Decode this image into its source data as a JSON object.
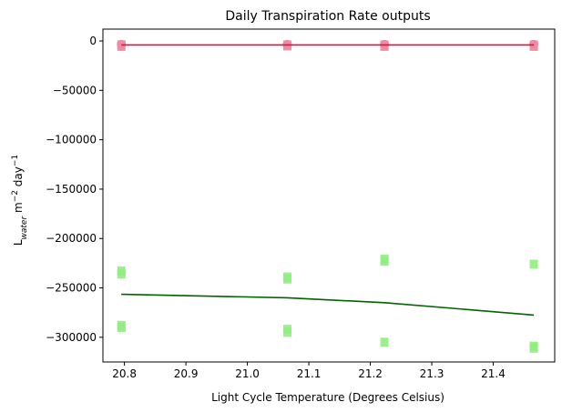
{
  "chart_data": {
    "type": "scatter",
    "title": "Daily Transpiration Rate outputs",
    "xlabel": "Light Cycle Temperature (Degrees Celsius)",
    "ylabel": {
      "base": "L",
      "sub": "water",
      "mid": " m",
      "sup1": "−2",
      "mid2": " day",
      "sup2": "−1"
    },
    "xlim": [
      20.765,
      21.5
    ],
    "ylim": [
      -325000,
      12000
    ],
    "xticks": [
      {
        "value": 20.8,
        "label": "20.8"
      },
      {
        "value": 20.9,
        "label": "20.9"
      },
      {
        "value": 21.0,
        "label": "21.0"
      },
      {
        "value": 21.1,
        "label": "21.1"
      },
      {
        "value": 21.2,
        "label": "21.2"
      },
      {
        "value": 21.3,
        "label": "21.3"
      },
      {
        "value": 21.4,
        "label": "21.4"
      }
    ],
    "yticks": [
      {
        "value": 0,
        "label": "0"
      },
      {
        "value": -50000,
        "label": "−50000"
      },
      {
        "value": -100000,
        "label": "−100000"
      },
      {
        "value": -150000,
        "label": "−150000"
      },
      {
        "value": -200000,
        "label": "−200000"
      },
      {
        "value": -250000,
        "label": "−250000"
      },
      {
        "value": -300000,
        "label": "−300000"
      }
    ],
    "grid": false,
    "series": [
      {
        "color": "#9999dd",
        "marker": "circle",
        "points": [
          [
            20.795,
            -3500
          ],
          [
            21.065,
            -3500
          ],
          [
            21.223,
            -3500
          ],
          [
            21.466,
            -3500
          ]
        ]
      },
      {
        "color": "#f48aa0",
        "marker": "square",
        "points": [
          [
            20.795,
            -5500
          ],
          [
            20.795,
            -4000
          ],
          [
            21.065,
            -5000
          ],
          [
            21.065,
            -4000
          ],
          [
            21.223,
            -5500
          ],
          [
            21.223,
            -4000
          ],
          [
            21.466,
            -5500
          ],
          [
            21.466,
            -4000
          ]
        ]
      },
      {
        "color": "#90ee80",
        "marker": "square",
        "points": [
          [
            20.795,
            -233000
          ],
          [
            20.795,
            -236000
          ],
          [
            20.795,
            -288000
          ],
          [
            20.795,
            -290000
          ],
          [
            21.065,
            -239000
          ],
          [
            21.065,
            -241000
          ],
          [
            21.065,
            -292000
          ],
          [
            21.065,
            -295000
          ],
          [
            21.223,
            -221000
          ],
          [
            21.223,
            -223000
          ],
          [
            21.223,
            -305000
          ],
          [
            21.466,
            -226000
          ],
          [
            21.466,
            -309000
          ],
          [
            21.466,
            -311000
          ]
        ]
      }
    ],
    "lines": [
      {
        "color": "#dd1144",
        "points": [
          [
            20.795,
            -4000
          ],
          [
            21.065,
            -4000
          ],
          [
            21.223,
            -4000
          ],
          [
            21.466,
            -4000
          ]
        ]
      },
      {
        "color": "#006400",
        "points": [
          [
            20.795,
            -256500
          ],
          [
            21.065,
            -260000
          ],
          [
            21.223,
            -265000
          ],
          [
            21.466,
            -277500
          ]
        ]
      }
    ]
  }
}
